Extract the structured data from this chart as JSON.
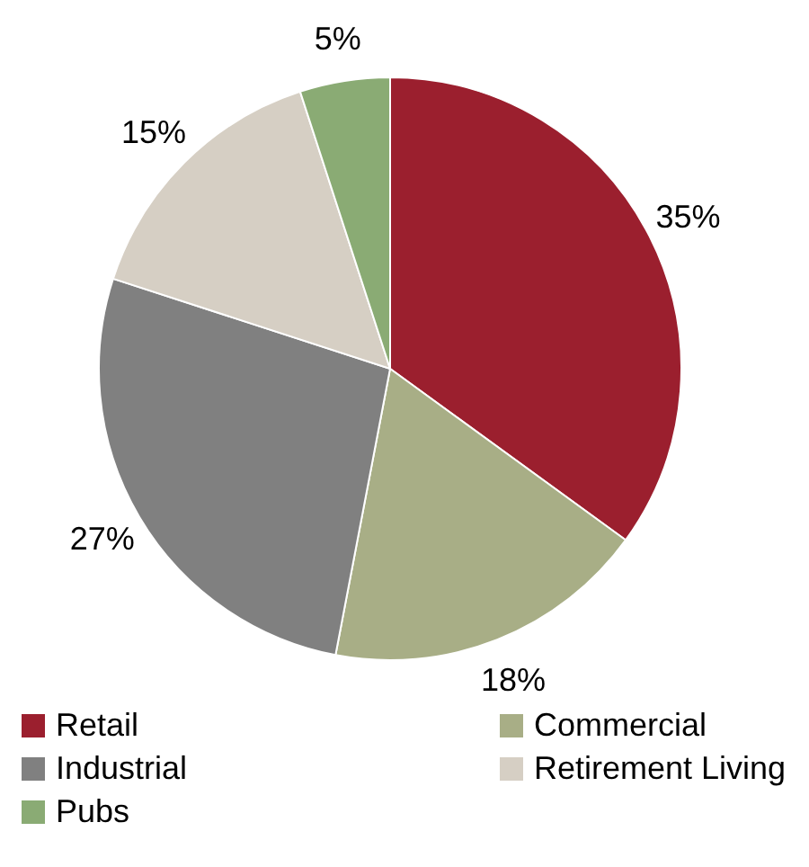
{
  "chart_data": {
    "type": "pie",
    "categories": [
      "Retail",
      "Commercial",
      "Industrial",
      "Retirement Living",
      "Pubs"
    ],
    "values": [
      35,
      18,
      27,
      15,
      5
    ],
    "colors": [
      "#9b1f2e",
      "#a8ae86",
      "#808080",
      "#d6cfc4",
      "#8aab74"
    ],
    "value_labels": [
      "35%",
      "18%",
      "27%",
      "15%",
      "5%"
    ],
    "legend": "bottom"
  }
}
